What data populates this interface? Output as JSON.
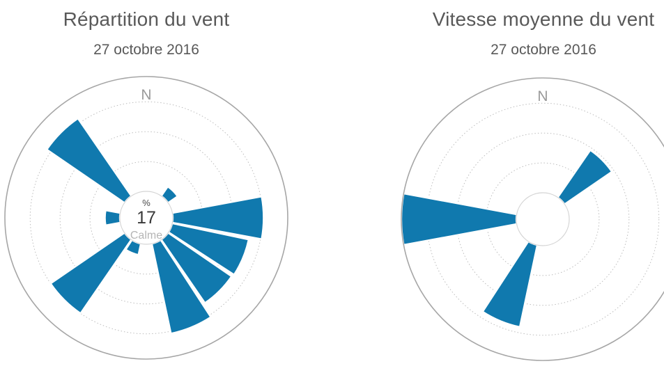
{
  "colors": {
    "bar": "#1079ae",
    "title_text": "#595959",
    "axis_text": "#9a9a9a",
    "calm_text": "#b5b5b5",
    "value_text": "#383838",
    "grid_line": "#bcbcbc",
    "rim_line": "#a6a6a6",
    "background": "#ffffff"
  },
  "chart_data": [
    {
      "type": "wind-rose polar bar",
      "title": "Répartition du vent",
      "subtitle": "27 octobre 2016",
      "north_label": "N",
      "center_annotation": {
        "unit": "%",
        "value": "17",
        "caption": "Calme"
      },
      "sector_width_deg": 22.5,
      "value_scale": "fraction of radial axis (radial tick labels not shown)",
      "radial_axis": {
        "hole_fraction": 0.187,
        "ring_fractions": [
          0.26,
          0.52,
          0.78
        ],
        "grid": "dotted",
        "labels_visible": false
      },
      "points": [
        {
          "direction": "NE",
          "angle": 45,
          "value": 0.1
        },
        {
          "direction": "E",
          "angle": 90,
          "value": 0.79
        },
        {
          "direction": "ESE",
          "angle": 112.5,
          "value": 0.68
        },
        {
          "direction": "SE",
          "angle": 135,
          "value": 0.67
        },
        {
          "direction": "SSE",
          "angle": 157.5,
          "value": 0.8
        },
        {
          "direction": "SSW",
          "angle": 202.5,
          "value": 0.1
        },
        {
          "direction": "SW",
          "angle": 225,
          "value": 0.78
        },
        {
          "direction": "W",
          "angle": 270,
          "value": 0.13
        },
        {
          "direction": "NW",
          "angle": 315,
          "value": 0.82
        }
      ]
    },
    {
      "type": "wind-rose polar bar",
      "title": "Vitesse moyenne du vent",
      "subtitle": "27 octobre 2016",
      "north_label": "N",
      "center_annotation": null,
      "sector_width_deg": 22.5,
      "value_scale": "fraction of radial axis (radial tick labels not shown)",
      "radial_axis": {
        "hole_fraction": 0.187,
        "ring_fractions": [
          0.26,
          0.52,
          0.78
        ],
        "grid": "dotted",
        "labels_visible": false
      },
      "points": [
        {
          "direction": "NE",
          "angle": 45,
          "value": 0.5
        },
        {
          "direction": "SSW",
          "angle": 202.5,
          "value": 0.73
        },
        {
          "direction": "W",
          "angle": 270,
          "value": 1.0
        }
      ]
    }
  ]
}
